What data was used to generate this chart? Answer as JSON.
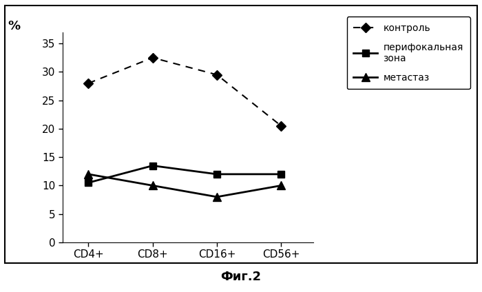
{
  "categories": [
    "CD4+",
    "CD8+",
    "CD16+",
    "CD56+"
  ],
  "kontrol": [
    28,
    32.5,
    29.5,
    20.5
  ],
  "perifokalnaya": [
    10.5,
    13.5,
    12,
    12
  ],
  "metastaz": [
    12,
    10,
    8,
    10
  ],
  "ylabel": "%",
  "ylim": [
    0,
    37
  ],
  "yticks": [
    0,
    5,
    10,
    15,
    20,
    25,
    30,
    35
  ],
  "legend_labels": [
    "контроль",
    "перифокальная\nзона",
    "метастаз"
  ],
  "caption": "Фиг.2",
  "bg_color": "#ffffff",
  "line_color": "#000000"
}
